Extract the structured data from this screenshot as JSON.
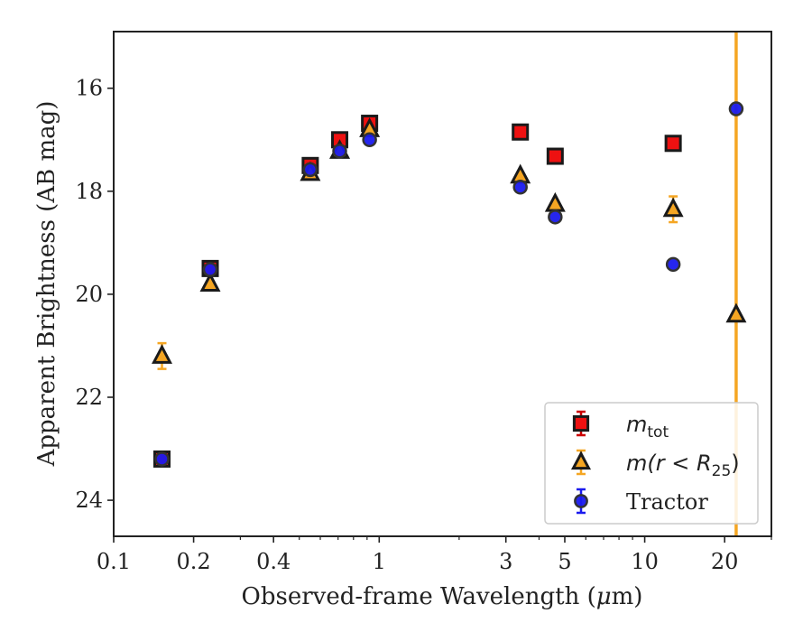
{
  "chart_data": {
    "type": "scatter",
    "xlabel": "Observed-frame Wavelength (μm)",
    "xlabel_parts": {
      "before": "Observed-frame Wavelength (",
      "greek": "μ",
      "after": "m)"
    },
    "ylabel": "Apparent Brightness (AB mag)",
    "x_scale": "log",
    "xlim": [
      0.1,
      30
    ],
    "ylim": [
      24.7,
      14.9
    ],
    "y_inverted": true,
    "x_ticks": [
      0.1,
      0.2,
      0.4,
      1,
      3,
      5,
      10,
      20
    ],
    "x_tick_labels": [
      "0.1",
      "0.2",
      "0.4",
      "1",
      "3",
      "5",
      "10",
      "20"
    ],
    "y_ticks": [
      16,
      18,
      20,
      22,
      24
    ],
    "y_tick_labels": [
      "16",
      "18",
      "20",
      "22",
      "24"
    ],
    "grid": false,
    "legend_position": "bottom-right",
    "vertical_line": {
      "x": 22.1,
      "color": "#f5a623"
    },
    "series": [
      {
        "name": "m_tot",
        "marker": "square",
        "fill": "#ee1111",
        "errcolor": "#cc0000",
        "points": [
          {
            "x": 0.152,
            "y": 23.2,
            "err": 0.05
          },
          {
            "x": 0.231,
            "y": 19.5,
            "err": 0.05
          },
          {
            "x": 0.55,
            "y": 17.5,
            "err": 0.05
          },
          {
            "x": 0.71,
            "y": 17.0,
            "err": 0.05
          },
          {
            "x": 0.92,
            "y": 16.68,
            "err": 0.05
          },
          {
            "x": 3.4,
            "y": 16.85,
            "err": 0.05
          },
          {
            "x": 4.6,
            "y": 17.32,
            "err": 0.05
          },
          {
            "x": 12.8,
            "y": 17.07,
            "err": 0.05
          }
        ]
      },
      {
        "name": "m(r < R25)",
        "marker": "triangle",
        "fill": "#f5a623",
        "errcolor": "#f5a623",
        "points": [
          {
            "x": 0.152,
            "y": 21.2,
            "err": 0.25
          },
          {
            "x": 0.231,
            "y": 19.8,
            "err": 0.05
          },
          {
            "x": 0.55,
            "y": 17.65,
            "err": 0.05
          },
          {
            "x": 0.71,
            "y": 17.22,
            "err": 0.05
          },
          {
            "x": 0.92,
            "y": 16.8,
            "err": 0.05
          },
          {
            "x": 3.4,
            "y": 17.7,
            "err": 0.05
          },
          {
            "x": 4.6,
            "y": 18.25,
            "err": 0.05
          },
          {
            "x": 12.8,
            "y": 18.35,
            "err": 0.25
          },
          {
            "x": 22.1,
            "y": 20.4,
            "err": 0.05
          }
        ]
      },
      {
        "name": "Tractor",
        "marker": "circle",
        "fill": "#1a1aee",
        "errcolor": "#1a1aee",
        "points": [
          {
            "x": 0.152,
            "y": 23.2,
            "err": 0.05
          },
          {
            "x": 0.231,
            "y": 19.52,
            "err": 0.05
          },
          {
            "x": 0.55,
            "y": 17.58,
            "err": 0.05
          },
          {
            "x": 0.71,
            "y": 17.22,
            "err": 0.05
          },
          {
            "x": 0.92,
            "y": 17.0,
            "err": 0.05
          },
          {
            "x": 3.4,
            "y": 17.92,
            "err": 0.05
          },
          {
            "x": 4.6,
            "y": 18.5,
            "err": 0.05
          },
          {
            "x": 12.8,
            "y": 19.42,
            "err": 0.05
          },
          {
            "x": 22.1,
            "y": 16.4,
            "err": 0.05
          }
        ]
      }
    ],
    "legend": [
      {
        "series": "m_tot",
        "label_main": "m",
        "label_sub": "tot",
        "label_tail": ""
      },
      {
        "series": "m(r < R25)",
        "label_main": "m(r < R",
        "label_sub": "25",
        "label_tail": ")"
      },
      {
        "series": "Tractor",
        "label_main": "Tractor",
        "label_sub": "",
        "label_tail": ""
      }
    ]
  }
}
